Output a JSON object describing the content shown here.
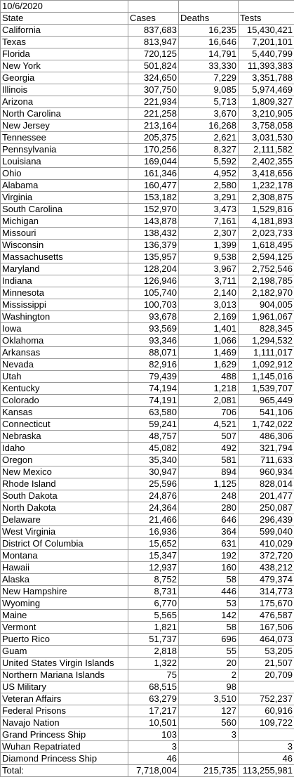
{
  "date": "10/6/2020",
  "table": {
    "columns": [
      "State",
      "Cases",
      "Deaths",
      "Tests"
    ],
    "rows": [
      [
        "California",
        "837,683",
        "16,235",
        "15,430,421"
      ],
      [
        "Texas",
        "813,947",
        "16,646",
        "7,201,101"
      ],
      [
        "Florida",
        "720,125",
        "14,791",
        "5,440,799"
      ],
      [
        "New York",
        "501,824",
        "33,330",
        "11,393,383"
      ],
      [
        "Georgia",
        "324,650",
        "7,229",
        "3,351,788"
      ],
      [
        "Illinois",
        "307,750",
        "9,085",
        "5,974,469"
      ],
      [
        "Arizona",
        "221,934",
        "5,713",
        "1,809,327"
      ],
      [
        "North Carolina",
        "221,258",
        "3,670",
        "3,210,905"
      ],
      [
        "New Jersey",
        "213,164",
        "16,268",
        "3,758,058"
      ],
      [
        "Tennessee",
        "205,375",
        "2,621",
        "3,031,530"
      ],
      [
        "Pennsylvania",
        "170,256",
        "8,327",
        "2,111,582"
      ],
      [
        "Louisiana",
        "169,044",
        "5,592",
        "2,402,355"
      ],
      [
        "Ohio",
        "161,346",
        "4,952",
        "3,418,656"
      ],
      [
        "Alabama",
        "160,477",
        "2,580",
        "1,232,178"
      ],
      [
        "Virginia",
        "153,182",
        "3,291",
        "2,308,875"
      ],
      [
        "South Carolina",
        "152,970",
        "3,473",
        "1,529,816"
      ],
      [
        "Michigan",
        "143,878",
        "7,161",
        "4,181,893"
      ],
      [
        "Missouri",
        "138,432",
        "2,307",
        "2,023,733"
      ],
      [
        "Wisconsin",
        "136,379",
        "1,399",
        "1,618,495"
      ],
      [
        "Massachusetts",
        "135,957",
        "9,538",
        "2,594,125"
      ],
      [
        "Maryland",
        "128,204",
        "3,967",
        "2,752,546"
      ],
      [
        "Indiana",
        "126,946",
        "3,711",
        "2,198,785"
      ],
      [
        "Minnesota",
        "105,740",
        "2,140",
        "2,182,970"
      ],
      [
        "Mississippi",
        "100,703",
        "3,013",
        "904,005"
      ],
      [
        "Washington",
        "93,678",
        "2,169",
        "1,961,067"
      ],
      [
        "Iowa",
        "93,569",
        "1,401",
        "828,345"
      ],
      [
        "Oklahoma",
        "93,346",
        "1,066",
        "1,294,532"
      ],
      [
        "Arkansas",
        "88,071",
        "1,469",
        "1,111,017"
      ],
      [
        "Nevada",
        "82,916",
        "1,629",
        "1,092,912"
      ],
      [
        "Utah",
        "79,439",
        "488",
        "1,145,016"
      ],
      [
        "Kentucky",
        "74,194",
        "1,218",
        "1,539,707"
      ],
      [
        "Colorado",
        "74,191",
        "2,081",
        "965,449"
      ],
      [
        "Kansas",
        "63,580",
        "706",
        "541,106"
      ],
      [
        "Connecticut",
        "59,241",
        "4,521",
        "1,742,022"
      ],
      [
        "Nebraska",
        "48,757",
        "507",
        "486,306"
      ],
      [
        "Idaho",
        "45,082",
        "492",
        "321,794"
      ],
      [
        "Oregon",
        "35,340",
        "581",
        "711,633"
      ],
      [
        "New Mexico",
        "30,947",
        "894",
        "960,934"
      ],
      [
        "Rhode Island",
        "25,596",
        "1,125",
        "828,014"
      ],
      [
        "South Dakota",
        "24,876",
        "248",
        "201,477"
      ],
      [
        "North Dakota",
        "24,364",
        "280",
        "250,087"
      ],
      [
        "Delaware",
        "21,466",
        "646",
        "296,439"
      ],
      [
        "West Virginia",
        "16,936",
        "364",
        "599,040"
      ],
      [
        "District Of Columbia",
        "15,652",
        "631",
        "410,029"
      ],
      [
        "Montana",
        "15,347",
        "192",
        "372,720"
      ],
      [
        "Hawaii",
        "12,937",
        "160",
        "438,212"
      ],
      [
        "Alaska",
        "8,752",
        "58",
        "479,374"
      ],
      [
        "New Hampshire",
        "8,731",
        "446",
        "314,773"
      ],
      [
        "Wyoming",
        "6,770",
        "53",
        "175,670"
      ],
      [
        "Maine",
        "5,565",
        "142",
        "476,587"
      ],
      [
        "Vermont",
        "1,821",
        "58",
        "167,506"
      ],
      [
        "Puerto Rico",
        "51,737",
        "696",
        "464,073"
      ],
      [
        "Guam",
        "2,818",
        "55",
        "53,205"
      ],
      [
        "United States Virgin Islands",
        "1,322",
        "20",
        "21,507"
      ],
      [
        "Northern Mariana Islands",
        "75",
        "2",
        "20,709"
      ],
      [
        "US Military",
        "68,515",
        "98",
        null
      ],
      [
        "Veteran Affairs",
        "63,279",
        "3,510",
        "752,237"
      ],
      [
        "Federal Prisons",
        "17,217",
        "127",
        "60,916"
      ],
      [
        "Navajo Nation",
        "10,501",
        "560",
        "109,722"
      ],
      [
        "Grand Princess Ship",
        "103",
        "3",
        null
      ],
      [
        "Wuhan Repatriated",
        "3",
        null,
        "3"
      ],
      [
        "Diamond Princess Ship",
        "46",
        null,
        "46"
      ]
    ],
    "total": [
      "Total:",
      "7,718,004",
      "215,735",
      "113,255,981"
    ]
  }
}
